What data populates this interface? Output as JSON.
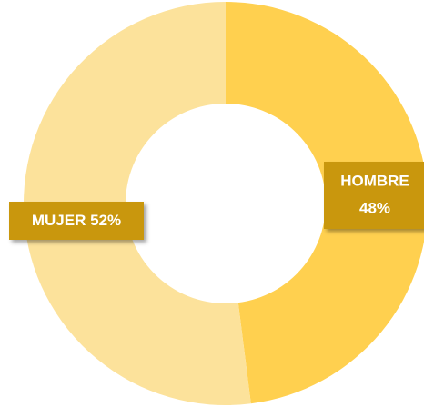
{
  "chart_data": {
    "type": "donut",
    "categories": [
      "HOMBRE",
      "MUJER"
    ],
    "values": [
      48,
      52
    ],
    "value_labels": [
      "48%",
      "52%"
    ],
    "colors": [
      "#ffd04f",
      "#fce29b"
    ],
    "label_color": "#c9970b"
  }
}
